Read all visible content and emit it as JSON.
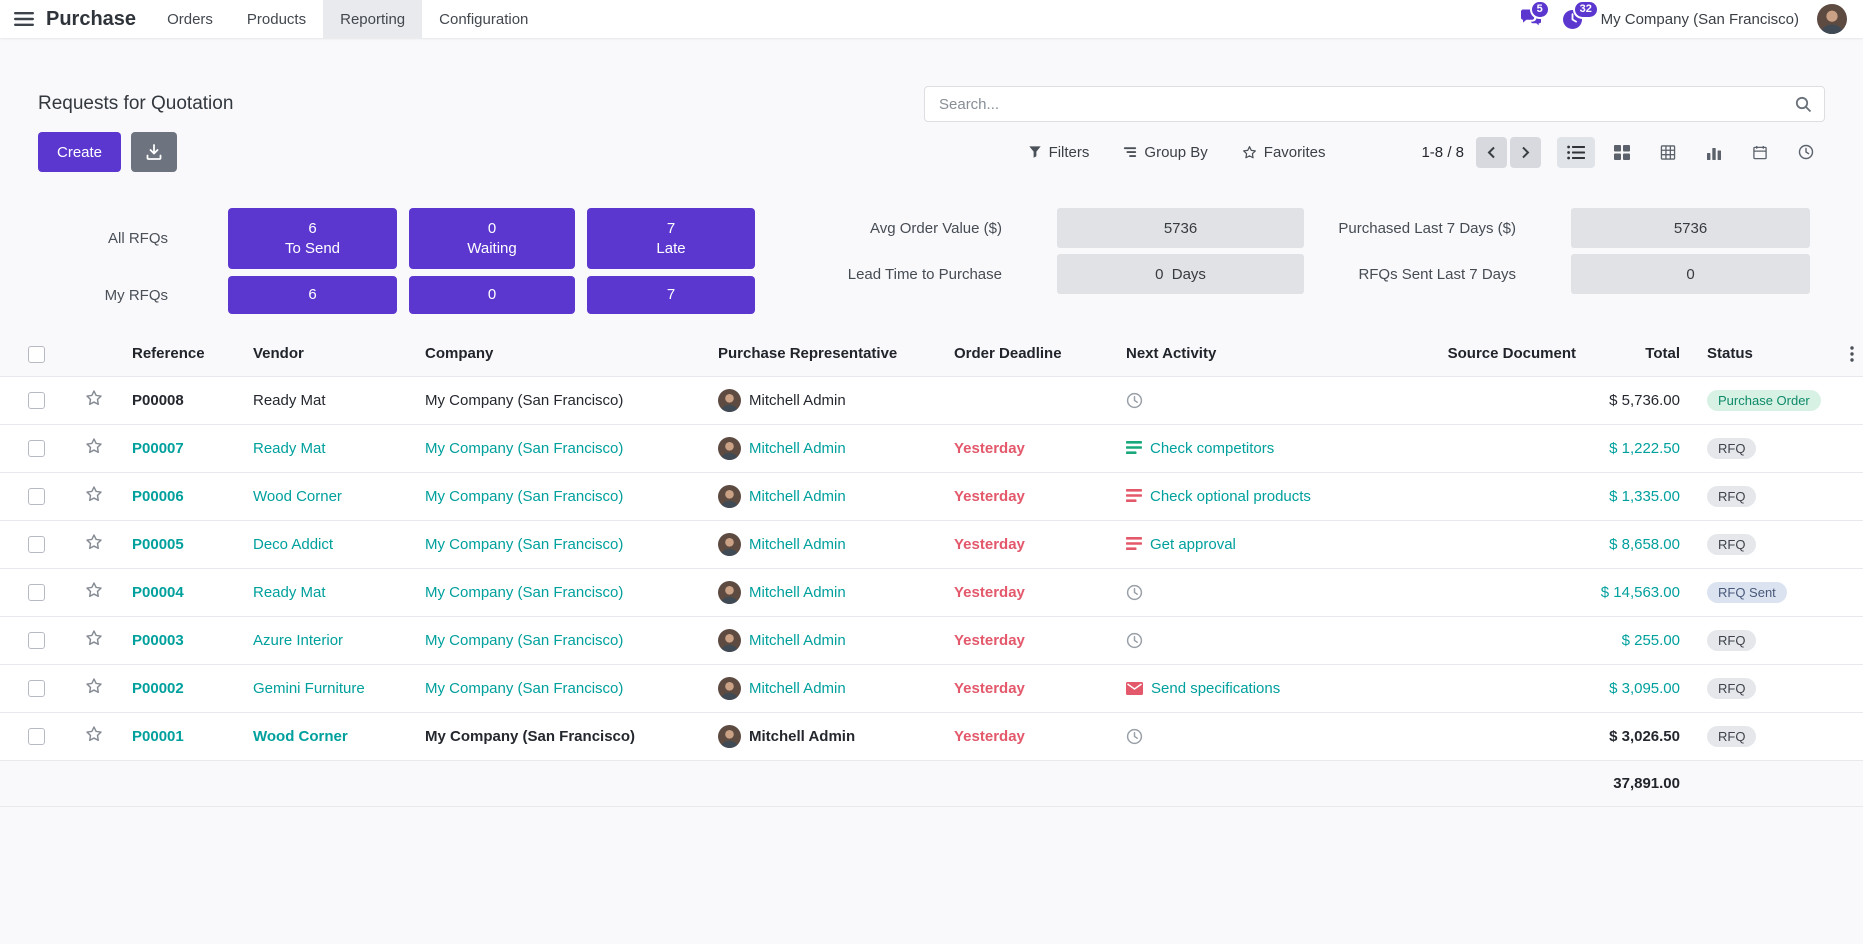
{
  "colors": {
    "accent": "#5c37cf",
    "link_teal": "#00a09d",
    "late_red": "#e3586b"
  },
  "icons": {
    "apps": "hamburger",
    "messages": "chat-bubbles",
    "activities": "clock",
    "search": "magnifier",
    "filters": "funnel",
    "group_by": "stacked-bars",
    "favorites": "star",
    "export": "download-tray",
    "view_switcher": [
      "list",
      "kanban",
      "pivot",
      "graph",
      "calendar",
      "activity"
    ]
  },
  "navbar": {
    "app_name": "Purchase",
    "menus": [
      {
        "label": "Orders",
        "active": false
      },
      {
        "label": "Products",
        "active": false
      },
      {
        "label": "Reporting",
        "active": true
      },
      {
        "label": "Configuration",
        "active": false
      }
    ],
    "messages_badge": "5",
    "activities_badge": "32",
    "company": "My Company (San Francisco)"
  },
  "control_panel": {
    "title": "Requests for Quotation",
    "search_placeholder": "Search...",
    "create_label": "Create",
    "filters_label": "Filters",
    "group_by_label": "Group By",
    "favorites_label": "Favorites",
    "pager": "1-8 / 8"
  },
  "dashboard": {
    "all_label": "All RFQs",
    "my_label": "My RFQs",
    "columns": [
      {
        "all_value": "6",
        "all_caption": "To Send",
        "my_value": "6"
      },
      {
        "all_value": "0",
        "all_caption": "Waiting",
        "my_value": "0"
      },
      {
        "all_value": "7",
        "all_caption": "Late",
        "my_value": "7"
      }
    ],
    "stats": [
      {
        "label": "Avg Order Value ($)",
        "value": "5736"
      },
      {
        "label": "Purchased Last 7 Days ($)",
        "value": "5736"
      },
      {
        "label": "Lead Time to Purchase",
        "value": "0  Days"
      },
      {
        "label": "RFQs Sent Last 7 Days",
        "value": "0"
      }
    ]
  },
  "table": {
    "headers": [
      "Reference",
      "Vendor",
      "Company",
      "Purchase Representative",
      "Order Deadline",
      "Next Activity",
      "Source Document",
      "Total",
      "Status"
    ],
    "rows": [
      {
        "reference": "P00008",
        "vendor": "Ready Mat",
        "company": "My Company (San Francisco)",
        "representative": "Mitchell Admin",
        "deadline": "",
        "activity": {
          "type": "clock",
          "label": ""
        },
        "source": "",
        "total": "$ 5,736.00",
        "status": {
          "label": "Purchase Order",
          "type": "success"
        },
        "tone": "dark",
        "bold": false
      },
      {
        "reference": "P00007",
        "vendor": "Ready Mat",
        "company": "My Company (San Francisco)",
        "representative": "Mitchell Admin",
        "deadline": "Yesterday",
        "activity": {
          "type": "list",
          "color": "#19a87c",
          "label": "Check competitors"
        },
        "source": "",
        "total": "$ 1,222.50",
        "status": {
          "label": "RFQ",
          "type": "default"
        },
        "tone": "teal",
        "bold": false
      },
      {
        "reference": "P00006",
        "vendor": "Wood Corner",
        "company": "My Company (San Francisco)",
        "representative": "Mitchell Admin",
        "deadline": "Yesterday",
        "activity": {
          "type": "list",
          "color": "#e3586b",
          "label": "Check optional products"
        },
        "source": "",
        "total": "$ 1,335.00",
        "status": {
          "label": "RFQ",
          "type": "default"
        },
        "tone": "teal",
        "bold": false
      },
      {
        "reference": "P00005",
        "vendor": "Deco Addict",
        "company": "My Company (San Francisco)",
        "representative": "Mitchell Admin",
        "deadline": "Yesterday",
        "activity": {
          "type": "list",
          "color": "#e3586b",
          "label": "Get approval"
        },
        "source": "",
        "total": "$ 8,658.00",
        "status": {
          "label": "RFQ",
          "type": "default"
        },
        "tone": "teal",
        "bold": false
      },
      {
        "reference": "P00004",
        "vendor": "Ready Mat",
        "company": "My Company (San Francisco)",
        "representative": "Mitchell Admin",
        "deadline": "Yesterday",
        "activity": {
          "type": "clock",
          "label": ""
        },
        "source": "",
        "total": "$ 14,563.00",
        "status": {
          "label": "RFQ Sent",
          "type": "info"
        },
        "tone": "teal",
        "bold": false
      },
      {
        "reference": "P00003",
        "vendor": "Azure Interior",
        "company": "My Company (San Francisco)",
        "representative": "Mitchell Admin",
        "deadline": "Yesterday",
        "activity": {
          "type": "clock",
          "label": ""
        },
        "source": "",
        "total": "$ 255.00",
        "status": {
          "label": "RFQ",
          "type": "default"
        },
        "tone": "teal",
        "bold": false
      },
      {
        "reference": "P00002",
        "vendor": "Gemini Furniture",
        "company": "My Company (San Francisco)",
        "representative": "Mitchell Admin",
        "deadline": "Yesterday",
        "activity": {
          "type": "envelope",
          "color": "#e3586b",
          "label": "Send specifications"
        },
        "source": "",
        "total": "$ 3,095.00",
        "status": {
          "label": "RFQ",
          "type": "default"
        },
        "tone": "teal",
        "bold": false
      },
      {
        "reference": "P00001",
        "vendor": "Wood Corner",
        "company": "My Company (San Francisco)",
        "representative": "Mitchell Admin",
        "deadline": "Yesterday",
        "activity": {
          "type": "clock",
          "label": ""
        },
        "source": "",
        "total": "$ 3,026.50",
        "status": {
          "label": "RFQ",
          "type": "default"
        },
        "tone": "mixed",
        "bold": true
      }
    ],
    "footer_total": "37,891.00"
  }
}
